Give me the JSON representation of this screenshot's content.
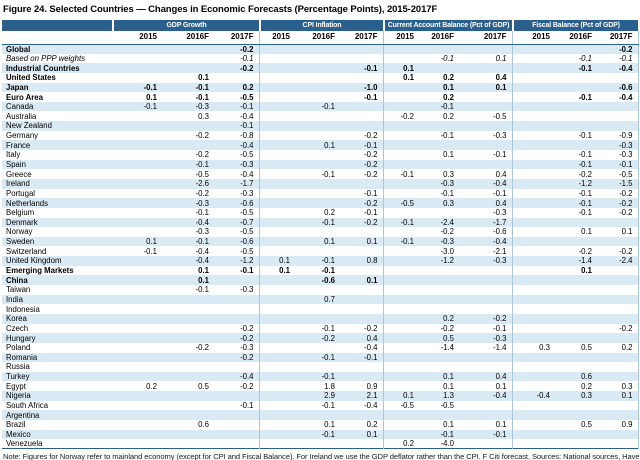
{
  "title": "Figure 24. Selected Countries — Changes in Economic Forecasts (Percentage Points), 2015-2017F",
  "note": "Note: Figures for Norway refer to mainland economy (except for CPI and Fiscal Balance). For Ireland we use the GDP deflator rather than the CPI. F Citi forecast. Sources: National sources, Haver Analytics and Citi Research",
  "colors": {
    "header_bg": "#2B5F8E",
    "stripe": "#DAEAF4",
    "divider": "#A9C6DA"
  },
  "columns": {
    "groups": [
      {
        "key": "gdp",
        "label": "GDP Growth"
      },
      {
        "key": "cpi",
        "label": "CPI Inflation"
      },
      {
        "key": "ca",
        "label": "Current Account Balance (Pct of GDP)"
      },
      {
        "key": "fb",
        "label": "Fiscal Balance (Pct of GDP)"
      }
    ],
    "years": [
      "2015",
      "2016F",
      "2017F"
    ]
  },
  "rows": [
    {
      "country": "Global",
      "style": "bold",
      "gdp": [
        "",
        "",
        "-0.2"
      ],
      "cpi": [
        "",
        "",
        ""
      ],
      "ca": [
        "",
        "",
        ""
      ],
      "fb": [
        "",
        "",
        "-0.2"
      ]
    },
    {
      "country": "Based on PPP weights",
      "style": "italic",
      "gdp": [
        "",
        "",
        "-0.1"
      ],
      "cpi": [
        "",
        "",
        ""
      ],
      "ca": [
        "",
        "-0.1",
        "0.1"
      ],
      "fb": [
        "",
        "-0.1",
        "-0.1"
      ]
    },
    {
      "country": "Industrial Countries",
      "style": "bold",
      "gdp": [
        "",
        "",
        "-0.2"
      ],
      "cpi": [
        "",
        "",
        "-0.1"
      ],
      "ca": [
        "0.1",
        "",
        ""
      ],
      "fb": [
        "",
        "-0.1",
        "-0.4"
      ]
    },
    {
      "country": "United States",
      "style": "bold",
      "gdp": [
        "",
        "0.1",
        ""
      ],
      "cpi": [
        "",
        "",
        ""
      ],
      "ca": [
        "0.1",
        "0.2",
        "0.4"
      ],
      "fb": [
        "",
        "",
        ""
      ]
    },
    {
      "country": "Japan",
      "style": "bold",
      "gdp": [
        "-0.1",
        "-0.1",
        "0.2"
      ],
      "cpi": [
        "",
        "",
        "-1.0"
      ],
      "ca": [
        "",
        "0.1",
        "0.1"
      ],
      "fb": [
        "",
        "",
        "-0.6"
      ]
    },
    {
      "country": "Euro Area",
      "style": "bold",
      "gdp": [
        "0.1",
        "-0.1",
        "-0.5"
      ],
      "cpi": [
        "",
        "",
        "-0.1"
      ],
      "ca": [
        "",
        "0.2",
        ""
      ],
      "fb": [
        "",
        "-0.1",
        "-0.4"
      ]
    },
    {
      "country": "Canada",
      "style": "normal",
      "gdp": [
        "-0.1",
        "-0.3",
        "-0.1"
      ],
      "cpi": [
        "",
        "-0.1",
        ""
      ],
      "ca": [
        "",
        "-0.1",
        ""
      ],
      "fb": [
        "",
        "",
        ""
      ]
    },
    {
      "country": "Australia",
      "style": "normal",
      "gdp": [
        "",
        "0.3",
        "-0.4"
      ],
      "cpi": [
        "",
        "",
        ""
      ],
      "ca": [
        "-0.2",
        "0.2",
        "-0.5"
      ],
      "fb": [
        "",
        "",
        ""
      ]
    },
    {
      "country": "New Zealand",
      "style": "normal",
      "gdp": [
        "",
        "",
        "-0.1"
      ],
      "cpi": [
        "",
        "",
        ""
      ],
      "ca": [
        "",
        "",
        ""
      ],
      "fb": [
        "",
        "",
        ""
      ]
    },
    {
      "country": "Germany",
      "style": "normal",
      "gdp": [
        "",
        "-0.2",
        "-0.8"
      ],
      "cpi": [
        "",
        "",
        "-0.2"
      ],
      "ca": [
        "",
        "-0.1",
        "-0.3"
      ],
      "fb": [
        "",
        "-0.1",
        "-0.9"
      ]
    },
    {
      "country": "France",
      "style": "normal",
      "gdp": [
        "",
        "",
        "-0.4"
      ],
      "cpi": [
        "",
        "0.1",
        "-0.1"
      ],
      "ca": [
        "",
        "",
        ""
      ],
      "fb": [
        "",
        "",
        "-0.3"
      ]
    },
    {
      "country": "Italy",
      "style": "normal",
      "gdp": [
        "",
        "-0.2",
        "-0.5"
      ],
      "cpi": [
        "",
        "",
        "-0.2"
      ],
      "ca": [
        "",
        "0.1",
        "-0.1"
      ],
      "fb": [
        "",
        "-0.1",
        "-0.3"
      ]
    },
    {
      "country": "Spain",
      "style": "normal",
      "gdp": [
        "",
        "-0.1",
        "-0.3"
      ],
      "cpi": [
        "",
        "",
        "-0.2"
      ],
      "ca": [
        "",
        "",
        ""
      ],
      "fb": [
        "",
        "-0.1",
        "-0.1"
      ]
    },
    {
      "country": "Greece",
      "style": "normal",
      "gdp": [
        "",
        "-0.5",
        "-0.4"
      ],
      "cpi": [
        "",
        "-0.1",
        "-0.2"
      ],
      "ca": [
        "-0.1",
        "0.3",
        "0.4"
      ],
      "fb": [
        "",
        "-0.2",
        "-0.5"
      ]
    },
    {
      "country": "Ireland",
      "style": "normal",
      "gdp": [
        "",
        "-2.6",
        "-1.7"
      ],
      "cpi": [
        "",
        "",
        ""
      ],
      "ca": [
        "",
        "-0.3",
        "-0.4"
      ],
      "fb": [
        "",
        "-1.2",
        "-1.5"
      ]
    },
    {
      "country": "Portugal",
      "style": "normal",
      "gdp": [
        "",
        "-0.2",
        "-0.3"
      ],
      "cpi": [
        "",
        "",
        "-0.1"
      ],
      "ca": [
        "",
        "-0.1",
        "-0.1"
      ],
      "fb": [
        "",
        "-0.1",
        "-0.2"
      ]
    },
    {
      "country": "Netherlands",
      "style": "normal",
      "gdp": [
        "",
        "-0.3",
        "-0.6"
      ],
      "cpi": [
        "",
        "",
        "-0.2"
      ],
      "ca": [
        "-0.5",
        "0.3",
        "0.4"
      ],
      "fb": [
        "",
        "-0.1",
        "-0.2"
      ]
    },
    {
      "country": "Belgium",
      "style": "normal",
      "gdp": [
        "",
        "-0.1",
        "-0.5"
      ],
      "cpi": [
        "",
        "0.2",
        "-0.1"
      ],
      "ca": [
        "",
        "",
        "-0.3"
      ],
      "fb": [
        "",
        "-0.1",
        "-0.2"
      ]
    },
    {
      "country": "Denmark",
      "style": "normal",
      "gdp": [
        "",
        "-0.4",
        "-0.7"
      ],
      "cpi": [
        "",
        "-0.1",
        "-0.2"
      ],
      "ca": [
        "-0.1",
        "-2.4",
        "-1.7"
      ],
      "fb": [
        "",
        "",
        ""
      ]
    },
    {
      "country": "Norway",
      "style": "normal",
      "gdp": [
        "",
        "-0.3",
        "-0.5"
      ],
      "cpi": [
        "",
        "",
        ""
      ],
      "ca": [
        "",
        "-0.2",
        "-0.6"
      ],
      "fb": [
        "",
        "0.1",
        "0.1"
      ]
    },
    {
      "country": "Sweden",
      "style": "normal",
      "gdp": [
        "0.1",
        "-0.1",
        "-0.6"
      ],
      "cpi": [
        "",
        "0.1",
        "0.1"
      ],
      "ca": [
        "-0.1",
        "-0.3",
        "-0.4"
      ],
      "fb": [
        "",
        "",
        ""
      ]
    },
    {
      "country": "Switzerland",
      "style": "normal",
      "gdp": [
        "-0.1",
        "-0.4",
        "-0.5"
      ],
      "cpi": [
        "",
        "",
        ""
      ],
      "ca": [
        "",
        "-3.0",
        "-2.1"
      ],
      "fb": [
        "",
        "-0.2",
        "-0.2"
      ]
    },
    {
      "country": "United Kingdom",
      "style": "normal",
      "gdp": [
        "",
        "-0.4",
        "-1.2"
      ],
      "cpi": [
        "0.1",
        "-0.1",
        "0.8"
      ],
      "ca": [
        "",
        "-1.2",
        "-0.3"
      ],
      "fb": [
        "",
        "-1.4",
        "-2.4"
      ]
    },
    {
      "country": "Emerging Markets",
      "style": "bold",
      "gdp": [
        "",
        "0.1",
        "-0.1"
      ],
      "cpi": [
        "0.1",
        "-0.1",
        ""
      ],
      "ca": [
        "",
        "",
        ""
      ],
      "fb": [
        "",
        "0.1",
        ""
      ]
    },
    {
      "country": "China",
      "style": "bold",
      "gdp": [
        "",
        "0.1",
        ""
      ],
      "cpi": [
        "",
        "-0.6",
        "0.1"
      ],
      "ca": [
        "",
        "",
        ""
      ],
      "fb": [
        "",
        "",
        ""
      ]
    },
    {
      "country": "Taiwan",
      "style": "normal",
      "gdp": [
        "",
        "-0.1",
        "-0.3"
      ],
      "cpi": [
        "",
        "",
        ""
      ],
      "ca": [
        "",
        "",
        ""
      ],
      "fb": [
        "",
        "",
        ""
      ]
    },
    {
      "country": "India",
      "style": "normal",
      "gdp": [
        "",
        "",
        ""
      ],
      "cpi": [
        "",
        "0.7",
        ""
      ],
      "ca": [
        "",
        "",
        ""
      ],
      "fb": [
        "",
        "",
        ""
      ]
    },
    {
      "country": "Indonesia",
      "style": "normal",
      "gdp": [
        "",
        "",
        ""
      ],
      "cpi": [
        "",
        "",
        ""
      ],
      "ca": [
        "",
        "",
        ""
      ],
      "fb": [
        "",
        "",
        ""
      ]
    },
    {
      "country": "Korea",
      "style": "normal",
      "gdp": [
        "",
        "",
        ""
      ],
      "cpi": [
        "",
        "",
        ""
      ],
      "ca": [
        "",
        "0.2",
        "-0.2"
      ],
      "fb": [
        "",
        "",
        ""
      ]
    },
    {
      "country": "Czech",
      "style": "normal",
      "gdp": [
        "",
        "",
        "-0.2"
      ],
      "cpi": [
        "",
        "-0.1",
        "-0.2"
      ],
      "ca": [
        "",
        "-0.2",
        "-0.1"
      ],
      "fb": [
        "",
        "",
        "-0.2"
      ]
    },
    {
      "country": "Hungary",
      "style": "normal",
      "gdp": [
        "",
        "",
        "-0.2"
      ],
      "cpi": [
        "",
        "-0.2",
        "0.4"
      ],
      "ca": [
        "",
        "0.5",
        "-0.3"
      ],
      "fb": [
        "",
        "",
        ""
      ]
    },
    {
      "country": "Poland",
      "style": "normal",
      "gdp": [
        "",
        "-0.2",
        "-0.3"
      ],
      "cpi": [
        "",
        "",
        "-0.4"
      ],
      "ca": [
        "",
        "-1.4",
        "-1.4"
      ],
      "fb": [
        "0.3",
        "0.5",
        "0.2"
      ]
    },
    {
      "country": "Romania",
      "style": "normal",
      "gdp": [
        "",
        "",
        "-0.2"
      ],
      "cpi": [
        "",
        "-0.1",
        "-0.1"
      ],
      "ca": [
        "",
        "",
        ""
      ],
      "fb": [
        "",
        "",
        ""
      ]
    },
    {
      "country": "Russia",
      "style": "normal",
      "gdp": [
        "",
        "",
        ""
      ],
      "cpi": [
        "",
        "",
        ""
      ],
      "ca": [
        "",
        "",
        ""
      ],
      "fb": [
        "",
        "",
        ""
      ]
    },
    {
      "country": "Turkey",
      "style": "normal",
      "gdp": [
        "",
        "",
        "-0.4"
      ],
      "cpi": [
        "",
        "-0.1",
        ""
      ],
      "ca": [
        "",
        "0.1",
        "0.4"
      ],
      "fb": [
        "",
        "0.6",
        ""
      ]
    },
    {
      "country": "Egypt",
      "style": "normal",
      "gdp": [
        "0.2",
        "0.5",
        "-0.2"
      ],
      "cpi": [
        "",
        "1.8",
        "0.9"
      ],
      "ca": [
        "",
        "0.1",
        "0.1"
      ],
      "fb": [
        "",
        "0.2",
        "0.3"
      ]
    },
    {
      "country": "Nigeria",
      "style": "normal",
      "gdp": [
        "",
        "",
        ""
      ],
      "cpi": [
        "",
        "2.9",
        "2.1"
      ],
      "ca": [
        "0.1",
        "1.3",
        "-0.4"
      ],
      "fb": [
        "-0.4",
        "0.3",
        "0.1"
      ]
    },
    {
      "country": "South Africa",
      "style": "normal",
      "gdp": [
        "",
        "",
        "-0.1"
      ],
      "cpi": [
        "",
        "-0.1",
        "-0.4"
      ],
      "ca": [
        "-0.5",
        "-0.5",
        ""
      ],
      "fb": [
        "",
        "",
        ""
      ]
    },
    {
      "country": "Argentina",
      "style": "normal",
      "gdp": [
        "",
        "",
        ""
      ],
      "cpi": [
        "",
        "",
        ""
      ],
      "ca": [
        "",
        "",
        ""
      ],
      "fb": [
        "",
        "",
        ""
      ]
    },
    {
      "country": "Brazil",
      "style": "normal",
      "gdp": [
        "",
        "0.6",
        ""
      ],
      "cpi": [
        "",
        "0.1",
        "0.2"
      ],
      "ca": [
        "",
        "0.1",
        "0.1"
      ],
      "fb": [
        "",
        "0.5",
        "0.9"
      ]
    },
    {
      "country": "Mexico",
      "style": "normal",
      "gdp": [
        "",
        "",
        ""
      ],
      "cpi": [
        "",
        "-0.1",
        "0.1"
      ],
      "ca": [
        "",
        "-0.1",
        "-0.1"
      ],
      "fb": [
        "",
        "",
        ""
      ]
    },
    {
      "country": "Venezuela",
      "style": "normal",
      "gdp": [
        "",
        "",
        ""
      ],
      "cpi": [
        "",
        "",
        ""
      ],
      "ca": [
        "0.2",
        "-4.0",
        ""
      ],
      "fb": [
        "",
        "",
        ""
      ]
    }
  ]
}
